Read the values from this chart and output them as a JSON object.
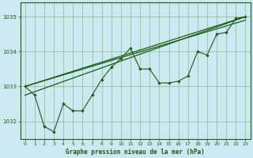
{
  "title": "Graphe pression niveau de la mer (hPa)",
  "bg_color": "#cce8f0",
  "grid_color": "#88bb88",
  "line_color": "#1a5c1a",
  "ylim": [
    1031.5,
    1035.4
  ],
  "xlim": [
    -0.5,
    23.5
  ],
  "yticks": [
    1032,
    1033,
    1034,
    1035
  ],
  "xticks": [
    0,
    1,
    2,
    3,
    4,
    5,
    6,
    7,
    8,
    9,
    10,
    11,
    12,
    13,
    14,
    15,
    16,
    17,
    18,
    19,
    20,
    21,
    22,
    23
  ],
  "series_main": [
    1033.0,
    1032.75,
    1031.85,
    1031.7,
    1032.5,
    1032.3,
    1032.3,
    1032.75,
    1033.2,
    1033.55,
    1033.8,
    1034.1,
    1033.5,
    1033.5,
    1033.1,
    1033.1,
    1033.15,
    1033.3,
    1034.0,
    1033.9,
    1034.5,
    1034.55,
    1034.95,
    1035.0
  ],
  "trend1_x": [
    0,
    23
  ],
  "trend1_y": [
    1033.0,
    1035.0
  ],
  "trend2_x": [
    0,
    23
  ],
  "trend2_y": [
    1032.75,
    1035.0
  ],
  "trend3_x": [
    0,
    23
  ],
  "trend3_y": [
    1033.0,
    1034.9
  ]
}
